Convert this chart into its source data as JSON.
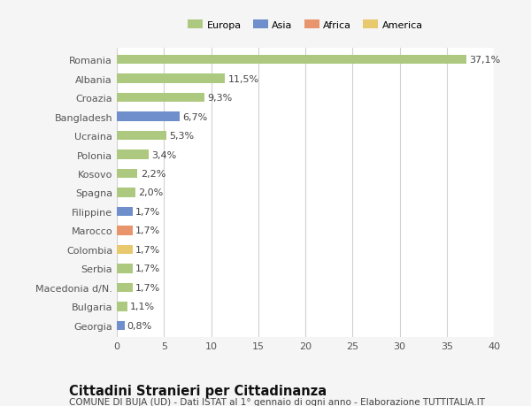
{
  "countries": [
    "Romania",
    "Albania",
    "Croazia",
    "Bangladesh",
    "Ucraina",
    "Polonia",
    "Kosovo",
    "Spagna",
    "Filippine",
    "Marocco",
    "Colombia",
    "Serbia",
    "Macedonia d/N.",
    "Bulgaria",
    "Georgia"
  ],
  "values": [
    37.1,
    11.5,
    9.3,
    6.7,
    5.3,
    3.4,
    2.2,
    2.0,
    1.7,
    1.7,
    1.7,
    1.7,
    1.7,
    1.1,
    0.8
  ],
  "labels": [
    "37,1%",
    "11,5%",
    "9,3%",
    "6,7%",
    "5,3%",
    "3,4%",
    "2,2%",
    "2,0%",
    "1,7%",
    "1,7%",
    "1,7%",
    "1,7%",
    "1,7%",
    "1,1%",
    "0,8%"
  ],
  "colors": [
    "#adc97f",
    "#adc97f",
    "#adc97f",
    "#6e8fcb",
    "#adc97f",
    "#adc97f",
    "#adc97f",
    "#adc97f",
    "#6e8fcb",
    "#e8956d",
    "#e8c96d",
    "#adc97f",
    "#adc97f",
    "#adc97f",
    "#6e8fcb"
  ],
  "legend_labels": [
    "Europa",
    "Asia",
    "Africa",
    "America"
  ],
  "legend_colors": [
    "#adc97f",
    "#6e8fcb",
    "#e8956d",
    "#e8c96d"
  ],
  "xlim": [
    0,
    40
  ],
  "xticks": [
    0,
    5,
    10,
    15,
    20,
    25,
    30,
    35,
    40
  ],
  "title": "Cittadini Stranieri per Cittadinanza",
  "subtitle": "COMUNE DI BUJA (UD) - Dati ISTAT al 1° gennaio di ogni anno - Elaborazione TUTTITALIA.IT",
  "background_color": "#f5f5f5",
  "plot_background": "#ffffff",
  "grid_color": "#d0d0d0",
  "label_fontsize": 8.0,
  "tick_fontsize": 8.0,
  "title_fontsize": 10.5,
  "subtitle_fontsize": 7.5,
  "bar_height": 0.5
}
